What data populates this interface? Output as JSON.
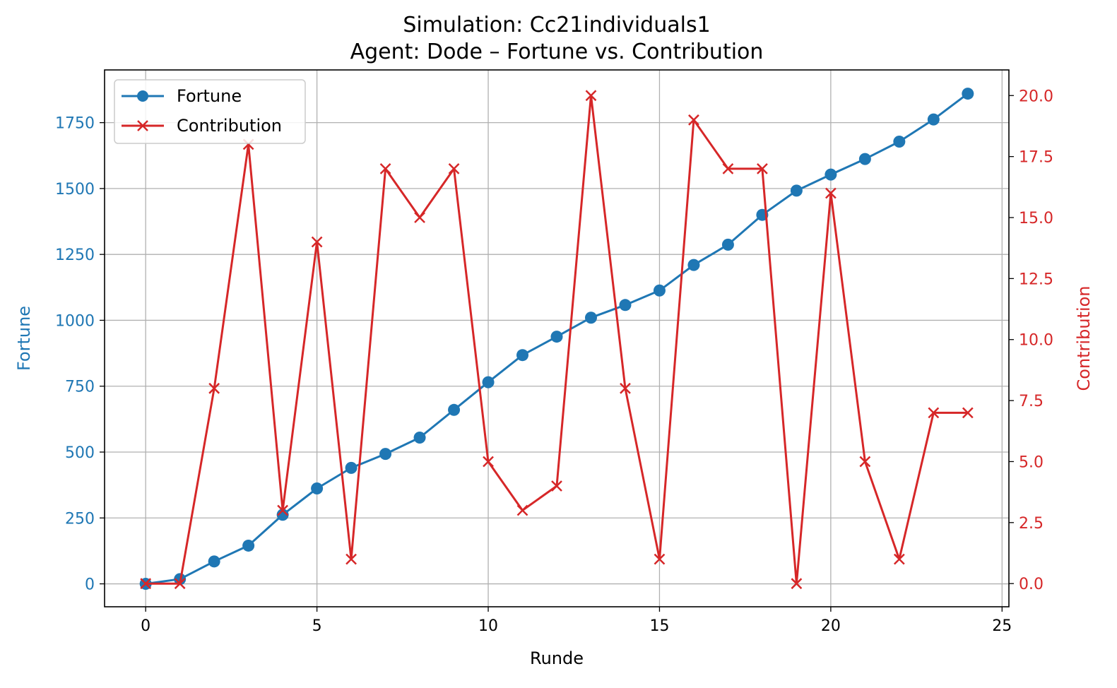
{
  "chart_data": {
    "type": "line",
    "title": "Simulation: Cc21individuals1",
    "subtitle": "Agent: Dode – Fortune vs. Contribution",
    "xlabel": "Runde",
    "ylabel_left": "Fortune",
    "ylabel_right": "Contribution",
    "xlim": [
      -1.2,
      25.2
    ],
    "ylim_left": [
      -87,
      1950
    ],
    "ylim_right": [
      -0.95,
      21.05
    ],
    "x_ticks": [
      "0",
      "5",
      "10",
      "15",
      "20",
      "25"
    ],
    "x_tick_values": [
      0,
      5,
      10,
      15,
      20,
      25
    ],
    "y_left_ticks": [
      "0",
      "250",
      "500",
      "750",
      "1000",
      "1250",
      "1500",
      "1750"
    ],
    "y_left_tick_values": [
      0,
      250,
      500,
      750,
      1000,
      1250,
      1500,
      1750
    ],
    "y_right_ticks": [
      "0.0",
      "2.5",
      "5.0",
      "7.5",
      "10.0",
      "12.5",
      "15.0",
      "17.5",
      "20.0"
    ],
    "y_right_tick_values": [
      0,
      2.5,
      5,
      7.5,
      10,
      12.5,
      15,
      17.5,
      20
    ],
    "grid": true,
    "legend_position": "top-left",
    "x": [
      0,
      1,
      2,
      3,
      4,
      5,
      6,
      7,
      8,
      9,
      10,
      11,
      12,
      13,
      14,
      15,
      16,
      17,
      18,
      19,
      20,
      21,
      22,
      23,
      24
    ],
    "series": [
      {
        "name": "Fortune",
        "axis": "left",
        "color": "#1f77b4",
        "marker": "circle",
        "values": [
          0,
          18,
          85,
          145,
          262,
          362,
          440,
          493,
          555,
          660,
          765,
          868,
          938,
          1010,
          1058,
          1113,
          1210,
          1287,
          1400,
          1492,
          1553,
          1612,
          1678,
          1762,
          1860
        ]
      },
      {
        "name": "Contribution",
        "axis": "right",
        "color": "#d62728",
        "marker": "x",
        "values": [
          0,
          0,
          8,
          18,
          3,
          14,
          1,
          17,
          15,
          17,
          5,
          3,
          4,
          20,
          8,
          1,
          19,
          17,
          17,
          0,
          16,
          5,
          1,
          7,
          7
        ]
      }
    ]
  }
}
